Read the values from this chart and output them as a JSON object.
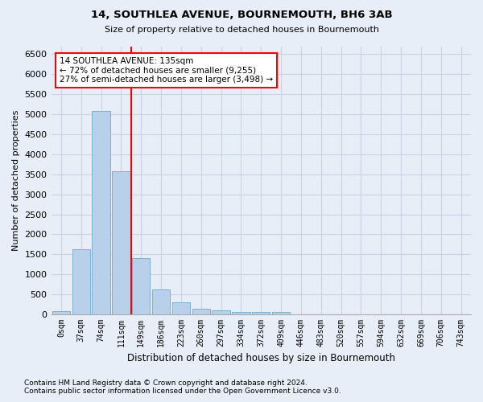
{
  "title": "14, SOUTHLEA AVENUE, BOURNEMOUTH, BH6 3AB",
  "subtitle": "Size of property relative to detached houses in Bournemouth",
  "xlabel": "Distribution of detached houses by size in Bournemouth",
  "ylabel": "Number of detached properties",
  "footnote1": "Contains HM Land Registry data © Crown copyright and database right 2024.",
  "footnote2": "Contains public sector information licensed under the Open Government Licence v3.0.",
  "bar_labels": [
    "0sqm",
    "37sqm",
    "74sqm",
    "111sqm",
    "149sqm",
    "186sqm",
    "223sqm",
    "260sqm",
    "297sqm",
    "334sqm",
    "372sqm",
    "409sqm",
    "446sqm",
    "483sqm",
    "520sqm",
    "557sqm",
    "594sqm",
    "632sqm",
    "669sqm",
    "706sqm",
    "743sqm"
  ],
  "bar_values": [
    75,
    1625,
    5075,
    3575,
    1400,
    625,
    300,
    150,
    100,
    60,
    55,
    60,
    0,
    0,
    0,
    0,
    0,
    0,
    0,
    0,
    0
  ],
  "bar_color": "#b8d0ea",
  "bar_edge_color": "#7aafd4",
  "annotation_text": "14 SOUTHLEA AVENUE: 135sqm\n← 72% of detached houses are smaller (9,255)\n27% of semi-detached houses are larger (3,498) →",
  "annotation_box_color": "white",
  "annotation_box_edge": "red",
  "vline_color": "red",
  "vline_x": 3.5,
  "ylim": [
    0,
    6700
  ],
  "yticks": [
    0,
    500,
    1000,
    1500,
    2000,
    2500,
    3000,
    3500,
    4000,
    4500,
    5000,
    5500,
    6000,
    6500
  ],
  "grid_color": "#c8d4e4",
  "background_color": "#e8eef8"
}
